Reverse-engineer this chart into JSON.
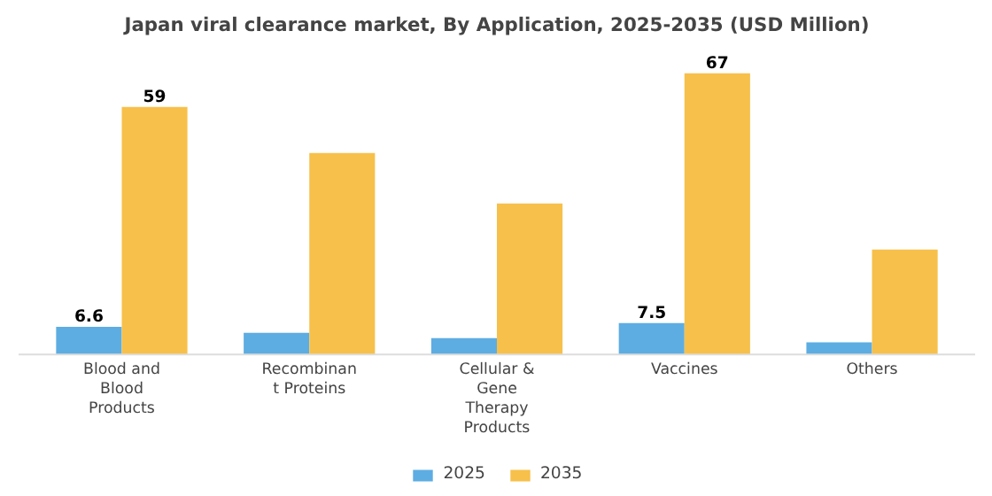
{
  "chart_data": {
    "type": "bar",
    "title": "Japan viral clearance market, By Application, 2025-2035 (USD Million)",
    "categories": [
      "Blood and Blood Products",
      "Recombinant Proteins",
      "Cellular & Gene Therapy Products",
      "Vaccines",
      "Others"
    ],
    "series": [
      {
        "name": "2025",
        "color": "#5dade2",
        "values": [
          6.6,
          5.2,
          3.9,
          7.5,
          2.9
        ],
        "value_labels": [
          "6.6",
          null,
          null,
          "7.5",
          null
        ]
      },
      {
        "name": "2035",
        "color": "#f7c04a",
        "values": [
          59,
          48,
          36,
          67,
          25
        ],
        "value_labels": [
          "59",
          null,
          null,
          "67",
          null
        ]
      }
    ],
    "legend": "bottom"
  }
}
